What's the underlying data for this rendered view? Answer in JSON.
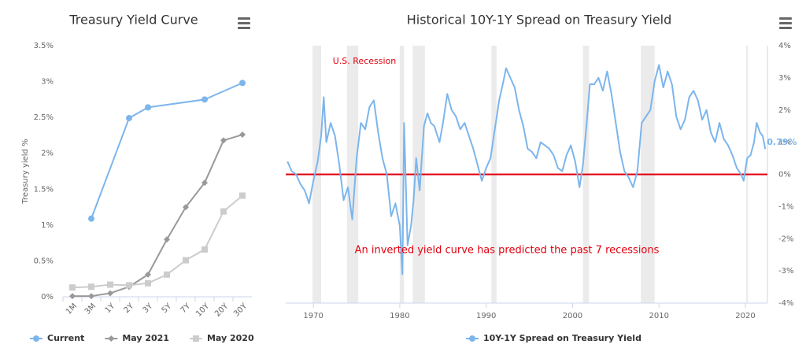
{
  "chart_data": [
    {
      "type": "line",
      "title": "Treasury Yield Curve",
      "y_label": "Treasury yield %",
      "categories": [
        "1M",
        "3M",
        "1Y",
        "2Y",
        "3Y",
        "5Y",
        "7Y",
        "10Y",
        "20Y",
        "30Y"
      ],
      "ylim": [
        0,
        3.5
      ],
      "yticks": [
        {
          "value": 0,
          "label": "0%"
        },
        {
          "value": 0.5,
          "label": "0.5%"
        },
        {
          "value": 1,
          "label": "1%"
        },
        {
          "value": 1.5,
          "label": "1.5%"
        },
        {
          "value": 2,
          "label": "2%"
        },
        {
          "value": 2.5,
          "label": "2.5%"
        },
        {
          "value": 3,
          "label": "3%"
        },
        {
          "value": 3.5,
          "label": "3.5%"
        }
      ],
      "grid": false,
      "show_markers": true,
      "series": [
        {
          "name": "Current",
          "color": "#7cb5ec",
          "marker": "circle",
          "x": [
            "3M",
            "2Y",
            "3Y",
            "10Y",
            "30Y"
          ],
          "values": [
            1.09,
            2.49,
            2.64,
            2.75,
            2.98
          ]
        },
        {
          "name": "May 2021",
          "color": "#999999",
          "marker": "diamond",
          "x": [
            "1M",
            "3M",
            "1Y",
            "2Y",
            "3Y",
            "5Y",
            "7Y",
            "10Y",
            "20Y",
            "30Y"
          ],
          "values": [
            0.01,
            0.01,
            0.05,
            0.14,
            0.31,
            0.8,
            1.25,
            1.59,
            2.18,
            2.26
          ]
        },
        {
          "name": "May 2020",
          "color": "#cccccc",
          "marker": "square",
          "x": [
            "1M",
            "3M",
            "1Y",
            "2Y",
            "3Y",
            "5Y",
            "7Y",
            "10Y",
            "20Y",
            "30Y"
          ],
          "values": [
            0.13,
            0.14,
            0.17,
            0.16,
            0.19,
            0.31,
            0.51,
            0.66,
            1.19,
            1.41
          ]
        }
      ]
    },
    {
      "type": "line",
      "title": "Historical 10Y-1Y Spread on Treasury Yield",
      "x": [
        1967.0,
        1967.5,
        1968.0,
        1968.5,
        1969.0,
        1969.5,
        1970.0,
        1970.5,
        1970.9,
        1971.2,
        1971.5,
        1972.0,
        1972.5,
        1973.0,
        1973.5,
        1974.0,
        1974.5,
        1975.0,
        1975.5,
        1976.0,
        1976.5,
        1977.0,
        1977.5,
        1978.0,
        1978.5,
        1979.0,
        1979.5,
        1980.0,
        1980.3,
        1980.5,
        1980.9,
        1981.3,
        1981.6,
        1981.9,
        1982.3,
        1982.8,
        1983.2,
        1983.6,
        1984.0,
        1984.6,
        1985.0,
        1985.5,
        1986.0,
        1986.5,
        1987.0,
        1987.5,
        1988.0,
        1988.5,
        1989.0,
        1989.5,
        1990.0,
        1990.5,
        1991.0,
        1991.5,
        1992.0,
        1992.3,
        1992.8,
        1993.3,
        1993.8,
        1994.3,
        1994.8,
        1995.3,
        1995.8,
        1996.3,
        1996.8,
        1997.3,
        1997.8,
        1998.3,
        1998.8,
        1999.3,
        1999.8,
        2000.3,
        2000.8,
        2001.2,
        2001.6,
        2002.0,
        2002.5,
        2003.0,
        2003.5,
        2004.0,
        2004.5,
        2005.0,
        2005.5,
        2006.0,
        2006.5,
        2007.0,
        2007.5,
        2008.0,
        2008.5,
        2009.0,
        2009.5,
        2010.0,
        2010.5,
        2011.0,
        2011.5,
        2012.0,
        2012.5,
        2013.0,
        2013.5,
        2014.0,
        2014.5,
        2015.0,
        2015.5,
        2016.0,
        2016.5,
        2017.0,
        2017.5,
        2018.0,
        2018.5,
        2019.0,
        2019.5,
        2019.8,
        2020.2,
        2020.6,
        2021.0,
        2021.3,
        2021.7,
        2022.0,
        2022.3
      ],
      "xlim": [
        1966.8,
        2022.55
      ],
      "xticks": [
        1970,
        1980,
        1990,
        2000,
        2010,
        2020
      ],
      "ylim": [
        -4,
        4
      ],
      "yticks": [
        {
          "value": -4,
          "label": "-4%"
        },
        {
          "value": -3,
          "label": "-3%"
        },
        {
          "value": -2,
          "label": "-2%"
        },
        {
          "value": -1,
          "label": "-1%"
        },
        {
          "value": 0,
          "label": "0%"
        },
        {
          "value": 1,
          "label": "1%"
        },
        {
          "value": 2,
          "label": "2%"
        },
        {
          "value": 3,
          "label": "3%"
        },
        {
          "value": 4,
          "label": "4%"
        }
      ],
      "y_axis_side": "right",
      "grid": false,
      "show_markers": false,
      "threshold": {
        "value": 0,
        "color": "#e3000f"
      },
      "recessions": {
        "label": "U.S. Recession",
        "color": "#ebebeb",
        "periods": [
          [
            1969.9,
            1970.9
          ],
          [
            1973.9,
            1975.2
          ],
          [
            1980.0,
            1980.5
          ],
          [
            1981.5,
            1982.9
          ],
          [
            1990.6,
            1991.2
          ],
          [
            2001.2,
            2001.9
          ],
          [
            2007.9,
            2009.5
          ],
          [
            2020.1,
            2020.3
          ]
        ]
      },
      "annotation": "An inverted yield curve has predicted the past 7 recessions",
      "series": [
        {
          "name": "10Y-1Y Spread on Treasury Yield",
          "color": "#7cb5ec",
          "marker": "circle",
          "values": [
            0.4,
            0.1,
            0.0,
            -0.3,
            -0.5,
            -0.9,
            -0.2,
            0.4,
            1.2,
            2.4,
            1.0,
            1.6,
            1.2,
            0.3,
            -0.8,
            -0.4,
            -1.4,
            0.5,
            1.6,
            1.4,
            2.1,
            2.3,
            1.3,
            0.5,
            0.0,
            -1.3,
            -0.9,
            -1.6,
            -3.1,
            1.6,
            -2.2,
            -1.6,
            -0.8,
            0.5,
            -0.5,
            1.5,
            1.9,
            1.6,
            1.5,
            1.0,
            1.6,
            2.5,
            2.0,
            1.8,
            1.4,
            1.6,
            1.2,
            0.8,
            0.3,
            -0.2,
            0.2,
            0.5,
            1.4,
            2.3,
            2.9,
            3.3,
            3.0,
            2.7,
            2.0,
            1.5,
            0.8,
            0.7,
            0.5,
            1.0,
            0.9,
            0.8,
            0.6,
            0.2,
            0.1,
            0.6,
            0.9,
            0.4,
            -0.4,
            0.3,
            1.5,
            2.8,
            2.8,
            3.0,
            2.6,
            3.2,
            2.5,
            1.6,
            0.7,
            0.1,
            -0.1,
            -0.4,
            0.1,
            1.6,
            1.8,
            2.0,
            2.9,
            3.4,
            2.7,
            3.2,
            2.8,
            1.8,
            1.4,
            1.7,
            2.4,
            2.6,
            2.3,
            1.7,
            2.0,
            1.3,
            1.0,
            1.6,
            1.1,
            0.9,
            0.6,
            0.2,
            0.0,
            -0.2,
            0.5,
            0.6,
            1.0,
            1.6,
            1.3,
            1.2,
            0.79
          ],
          "value_labels": [
            null,
            null,
            null,
            null,
            null,
            null,
            null,
            null,
            null,
            null,
            null,
            null,
            null,
            null,
            null,
            null,
            null,
            null,
            null,
            null,
            null,
            null,
            null,
            null,
            null,
            null,
            null,
            null,
            null,
            null,
            null,
            null,
            null,
            null,
            null,
            null,
            null,
            null,
            null,
            null,
            null,
            null,
            null,
            null,
            null,
            null,
            null,
            null,
            null,
            null,
            null,
            null,
            null,
            null,
            null,
            null,
            null,
            null,
            null,
            null,
            null,
            null,
            null,
            null,
            null,
            null,
            null,
            null,
            null,
            null,
            null,
            null,
            null,
            null,
            null,
            null,
            null,
            null,
            null,
            null,
            null,
            null,
            null,
            null,
            null,
            null,
            null,
            null,
            null,
            null,
            null,
            null,
            null,
            null,
            null,
            null,
            null,
            null,
            null,
            null,
            null,
            null,
            null,
            null,
            null,
            null,
            null,
            null,
            null,
            null,
            null,
            null,
            null,
            null,
            null,
            null,
            null,
            null,
            "0.79%"
          ]
        }
      ]
    }
  ]
}
